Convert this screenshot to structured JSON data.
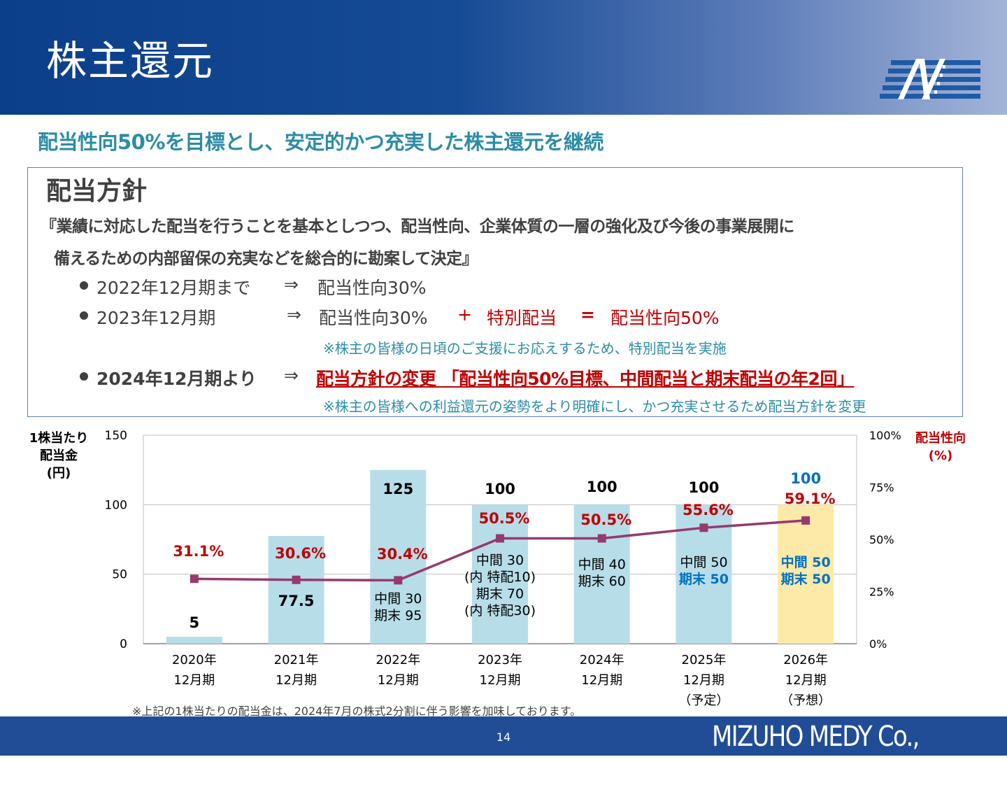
{
  "header": {
    "title": "株主還元"
  },
  "subtitle": "配当性向50%を目標とし、安定的かつ充実した株主還元を継続",
  "policy": {
    "heading": "配当方針",
    "quote_line1": "『業績に対応した配当を行うことを基本としつつ、配当性向、企業体質の一層の強化及び今後の事業展開に",
    "quote_line2": "備えるための内部留保の充実などを総合的に勘案して決定』",
    "b1_label": "2022年12月期まで",
    "b1_arrow": "⇒",
    "b1_value": "配当性向30%",
    "b2_label": "2023年12月期",
    "b2_arrow": "⇒",
    "b2_value": "配当性向30%",
    "b2_plus": "+",
    "b2_special": "特別配当",
    "b2_equals": "=",
    "b2_result": "配当性向50%",
    "b2_note": "※株主の皆様の日頃のご支援にお応えするため、特別配当を実施",
    "b3_label": "2024年12月期より",
    "b3_arrow": "⇒",
    "b3_value": "配当方針の変更 「配当性向50%目標、中間配当と期末配当の年2回」",
    "b3_note": "※株主の皆様への利益還元の姿勢をより明確にし、かつ充実させるため配当方針を変更"
  },
  "chart_data": {
    "type": "bar",
    "left_axis_label": [
      "1株当たり",
      "配当金",
      "(円)"
    ],
    "right_axis_label": [
      "配当性向",
      "(%)"
    ],
    "left_ylim": [
      0,
      150
    ],
    "left_ticks": [
      "0",
      "50",
      "100",
      "150"
    ],
    "right_ylim": [
      0,
      100
    ],
    "right_ticks": [
      "0%",
      "25%",
      "50%",
      "75%",
      "100%"
    ],
    "grid": true,
    "categories": [
      [
        "2020年",
        "12月期"
      ],
      [
        "2021年",
        "12月期"
      ],
      [
        "2022年",
        "12月期"
      ],
      [
        "2023年",
        "12月期"
      ],
      [
        "2024年",
        "12月期"
      ],
      [
        "2025年",
        "12月期",
        "（予定）"
      ],
      [
        "2026年",
        "12月期",
        "（予想）"
      ]
    ],
    "series": [
      {
        "type": "bar",
        "values": [
          5,
          77.5,
          125,
          100,
          100,
          100,
          100
        ],
        "labels": [
          "5",
          "77.5",
          "125",
          "100",
          "100",
          "100",
          "100"
        ]
      },
      {
        "type": "line",
        "values": [
          31.1,
          30.6,
          30.4,
          50.5,
          50.5,
          55.6,
          59.1
        ],
        "labels": [
          "31.1%",
          "30.6%",
          "30.4%",
          "50.5%",
          "50.5%",
          "55.6%",
          "59.1%"
        ]
      }
    ],
    "breakdowns": [
      [],
      [],
      [
        "中間 30",
        "期末 95"
      ],
      [
        "中間 30",
        "(内 特配10)",
        "期末 70",
        "(内 特配30)"
      ],
      [
        "中間 40",
        "期末 60"
      ],
      [
        "中間 50",
        "期末 50"
      ],
      [
        "中間 50",
        "期末 50"
      ]
    ],
    "colors": {
      "bar": "#b7dde8",
      "bar_highlight": "#fde9a8",
      "line": "#943a6e",
      "percent_label": "#c00000",
      "blue_label": "#0070c0"
    }
  },
  "footnote": "※上記の1株当たりの配当金は、2024年7月の株式2分割に伴う影響を加味しております。",
  "footer": {
    "page_number": "14",
    "company": "MIZUHO MEDY Co., Ltd."
  }
}
